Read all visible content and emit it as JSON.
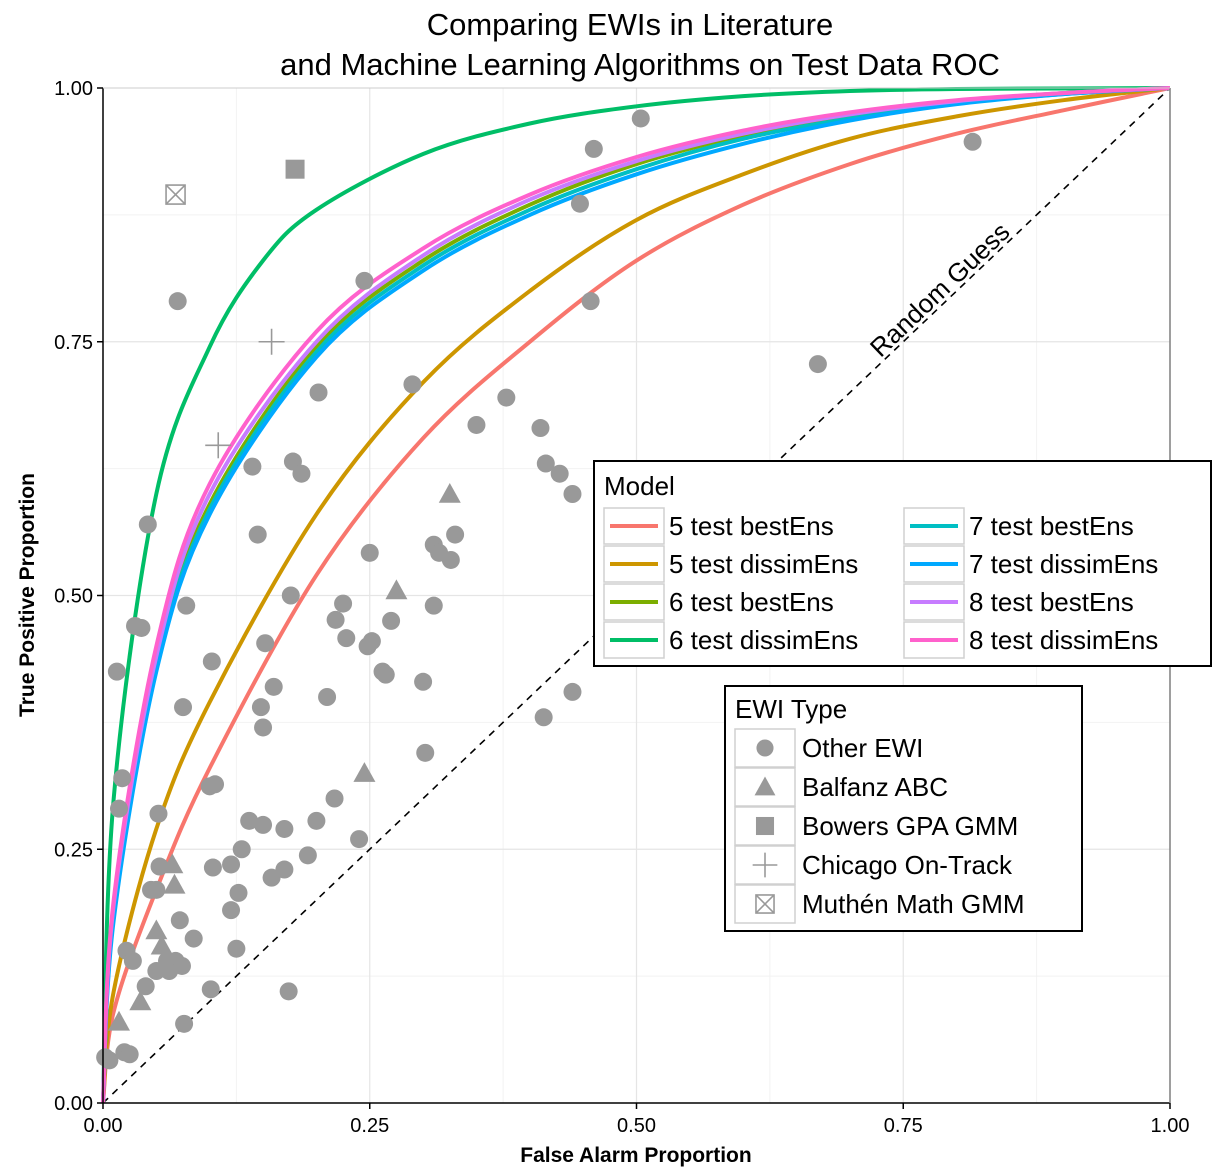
{
  "chart_data": {
    "type": "scatter",
    "title": [
      "Comparing EWIs in Literature",
      "and Machine Learning Algorithms on Test Data ROC"
    ],
    "xlabel": "False Alarm Proportion",
    "ylabel": "True Positive Proportion",
    "xlim": [
      0,
      1
    ],
    "ylim": [
      0,
      1
    ],
    "xticks": [
      "0.00",
      "0.25",
      "0.50",
      "0.75",
      "1.00"
    ],
    "yticks": [
      "0.00",
      "0.25",
      "0.50",
      "0.75",
      "1.00"
    ],
    "grid": true,
    "annotations": [
      {
        "text": "Random Guess",
        "x": 0.79,
        "y": 0.795
      }
    ],
    "reference_line": {
      "name": "Random Guess",
      "points": [
        [
          0,
          0
        ],
        [
          1,
          1
        ]
      ],
      "style": "dashed"
    },
    "model_legend": {
      "title": "Model",
      "placement": "right",
      "entries": [
        {
          "name": "5 test bestEns",
          "color": "#F8766D"
        },
        {
          "name": "5 test dissimEns",
          "color": "#CD9600"
        },
        {
          "name": "6 test bestEns",
          "color": "#7CAE00"
        },
        {
          "name": "6 test dissimEns",
          "color": "#00BE67"
        },
        {
          "name": "7 test bestEns",
          "color": "#00BFC4"
        },
        {
          "name": "7 test dissimEns",
          "color": "#00A9FF"
        },
        {
          "name": "8 test bestEns",
          "color": "#C77CFF"
        },
        {
          "name": "8 test dissimEns",
          "color": "#FF61CC"
        }
      ]
    },
    "curves": [
      {
        "name": "5 test bestEns",
        "color": "#F8766D",
        "points": [
          [
            0,
            0
          ],
          [
            0.01,
            0.09
          ],
          [
            0.05,
            0.21
          ],
          [
            0.1,
            0.33
          ],
          [
            0.2,
            0.52
          ],
          [
            0.3,
            0.655
          ],
          [
            0.4,
            0.75
          ],
          [
            0.5,
            0.83
          ],
          [
            0.6,
            0.885
          ],
          [
            0.7,
            0.925
          ],
          [
            0.8,
            0.955
          ],
          [
            0.9,
            0.978
          ],
          [
            1,
            1
          ]
        ]
      },
      {
        "name": "5 test dissimEns",
        "color": "#CD9600",
        "points": [
          [
            0,
            0
          ],
          [
            0.01,
            0.11
          ],
          [
            0.05,
            0.27
          ],
          [
            0.1,
            0.395
          ],
          [
            0.2,
            0.58
          ],
          [
            0.3,
            0.71
          ],
          [
            0.4,
            0.8
          ],
          [
            0.5,
            0.87
          ],
          [
            0.6,
            0.915
          ],
          [
            0.7,
            0.95
          ],
          [
            0.8,
            0.972
          ],
          [
            0.9,
            0.988
          ],
          [
            1,
            1
          ]
        ]
      },
      {
        "name": "6 test bestEns",
        "color": "#7CAE00",
        "points": [
          [
            0,
            0
          ],
          [
            0.01,
            0.19
          ],
          [
            0.05,
            0.435
          ],
          [
            0.1,
            0.59
          ],
          [
            0.2,
            0.745
          ],
          [
            0.3,
            0.83
          ],
          [
            0.4,
            0.885
          ],
          [
            0.5,
            0.925
          ],
          [
            0.6,
            0.953
          ],
          [
            0.7,
            0.972
          ],
          [
            0.8,
            0.986
          ],
          [
            0.9,
            0.995
          ],
          [
            1,
            1
          ]
        ]
      },
      {
        "name": "6 test dissimEns",
        "color": "#00BE67",
        "points": [
          [
            0,
            0
          ],
          [
            0.01,
            0.3
          ],
          [
            0.05,
            0.6
          ],
          [
            0.1,
            0.745
          ],
          [
            0.15,
            0.83
          ],
          [
            0.2,
            0.88
          ],
          [
            0.3,
            0.935
          ],
          [
            0.4,
            0.965
          ],
          [
            0.5,
            0.982
          ],
          [
            0.6,
            0.992
          ],
          [
            0.7,
            0.997
          ],
          [
            0.8,
            0.999
          ],
          [
            1,
            1
          ]
        ]
      },
      {
        "name": "7 test bestEns",
        "color": "#00BFC4",
        "points": [
          [
            0,
            0
          ],
          [
            0.01,
            0.185
          ],
          [
            0.05,
            0.43
          ],
          [
            0.1,
            0.585
          ],
          [
            0.2,
            0.74
          ],
          [
            0.3,
            0.825
          ],
          [
            0.4,
            0.88
          ],
          [
            0.5,
            0.92
          ],
          [
            0.6,
            0.95
          ],
          [
            0.7,
            0.97
          ],
          [
            0.8,
            0.985
          ],
          [
            0.9,
            0.994
          ],
          [
            1,
            1
          ]
        ]
      },
      {
        "name": "7 test dissimEns",
        "color": "#00A9FF",
        "points": [
          [
            0,
            0
          ],
          [
            0.01,
            0.18
          ],
          [
            0.05,
            0.425
          ],
          [
            0.1,
            0.58
          ],
          [
            0.2,
            0.735
          ],
          [
            0.3,
            0.82
          ],
          [
            0.4,
            0.875
          ],
          [
            0.5,
            0.915
          ],
          [
            0.6,
            0.945
          ],
          [
            0.7,
            0.968
          ],
          [
            0.8,
            0.984
          ],
          [
            0.9,
            0.994
          ],
          [
            1,
            1
          ]
        ]
      },
      {
        "name": "8 test bestEns",
        "color": "#C77CFF",
        "points": [
          [
            0,
            0
          ],
          [
            0.01,
            0.195
          ],
          [
            0.05,
            0.44
          ],
          [
            0.1,
            0.6
          ],
          [
            0.2,
            0.75
          ],
          [
            0.3,
            0.835
          ],
          [
            0.4,
            0.89
          ],
          [
            0.5,
            0.928
          ],
          [
            0.6,
            0.955
          ],
          [
            0.7,
            0.974
          ],
          [
            0.8,
            0.987
          ],
          [
            0.9,
            0.995
          ],
          [
            1,
            1
          ]
        ]
      },
      {
        "name": "8 test dissimEns",
        "color": "#FF61CC",
        "points": [
          [
            0,
            0
          ],
          [
            0.01,
            0.2
          ],
          [
            0.05,
            0.45
          ],
          [
            0.1,
            0.61
          ],
          [
            0.2,
            0.76
          ],
          [
            0.3,
            0.842
          ],
          [
            0.4,
            0.895
          ],
          [
            0.5,
            0.932
          ],
          [
            0.6,
            0.958
          ],
          [
            0.7,
            0.976
          ],
          [
            0.8,
            0.988
          ],
          [
            0.9,
            0.995
          ],
          [
            1,
            1
          ]
        ]
      }
    ],
    "ewi_legend": {
      "title": "EWI Type",
      "placement": "right",
      "entries": [
        {
          "name": "Other EWI",
          "shape": "circle"
        },
        {
          "name": "Balfanz ABC",
          "shape": "triangle"
        },
        {
          "name": "Bowers GPA GMM",
          "shape": "square"
        },
        {
          "name": "Chicago On-Track",
          "shape": "plus"
        },
        {
          "name": "Muthén Math GMM",
          "shape": "boxx"
        }
      ]
    },
    "points_color": "#999999",
    "series": [
      {
        "name": "Other EWI",
        "shape": "circle",
        "points": [
          [
            0.002,
            0.045
          ],
          [
            0.006,
            0.042
          ],
          [
            0.013,
            0.425
          ],
          [
            0.015,
            0.29
          ],
          [
            0.018,
            0.32
          ],
          [
            0.02,
            0.05
          ],
          [
            0.022,
            0.15
          ],
          [
            0.025,
            0.048
          ],
          [
            0.028,
            0.14
          ],
          [
            0.03,
            0.47
          ],
          [
            0.036,
            0.468
          ],
          [
            0.04,
            0.115
          ],
          [
            0.042,
            0.57
          ],
          [
            0.045,
            0.21
          ],
          [
            0.05,
            0.21
          ],
          [
            0.05,
            0.13
          ],
          [
            0.052,
            0.285
          ],
          [
            0.053,
            0.233
          ],
          [
            0.06,
            0.14
          ],
          [
            0.062,
            0.13
          ],
          [
            0.068,
            0.14
          ],
          [
            0.07,
            0.79
          ],
          [
            0.072,
            0.18
          ],
          [
            0.074,
            0.135
          ],
          [
            0.075,
            0.39
          ],
          [
            0.076,
            0.078
          ],
          [
            0.078,
            0.49
          ],
          [
            0.085,
            0.162
          ],
          [
            0.1,
            0.312
          ],
          [
            0.101,
            0.112
          ],
          [
            0.102,
            0.435
          ],
          [
            0.103,
            0.232
          ],
          [
            0.105,
            0.314
          ],
          [
            0.12,
            0.19
          ],
          [
            0.12,
            0.235
          ],
          [
            0.125,
            0.152
          ],
          [
            0.127,
            0.207
          ],
          [
            0.13,
            0.25
          ],
          [
            0.137,
            0.278
          ],
          [
            0.14,
            0.627
          ],
          [
            0.145,
            0.56
          ],
          [
            0.148,
            0.39
          ],
          [
            0.15,
            0.274
          ],
          [
            0.15,
            0.37
          ],
          [
            0.152,
            0.453
          ],
          [
            0.158,
            0.222
          ],
          [
            0.16,
            0.41
          ],
          [
            0.17,
            0.27
          ],
          [
            0.17,
            0.23
          ],
          [
            0.174,
            0.11
          ],
          [
            0.176,
            0.5
          ],
          [
            0.178,
            0.632
          ],
          [
            0.186,
            0.62
          ],
          [
            0.192,
            0.244
          ],
          [
            0.2,
            0.278
          ],
          [
            0.202,
            0.7
          ],
          [
            0.21,
            0.4
          ],
          [
            0.217,
            0.3
          ],
          [
            0.218,
            0.476
          ],
          [
            0.225,
            0.492
          ],
          [
            0.228,
            0.458
          ],
          [
            0.24,
            0.26
          ],
          [
            0.245,
            0.81
          ],
          [
            0.248,
            0.45
          ],
          [
            0.25,
            0.542
          ],
          [
            0.252,
            0.455
          ],
          [
            0.262,
            0.425
          ],
          [
            0.265,
            0.422
          ],
          [
            0.27,
            0.475
          ],
          [
            0.29,
            0.708
          ],
          [
            0.3,
            0.415
          ],
          [
            0.302,
            0.345
          ],
          [
            0.31,
            0.55
          ],
          [
            0.31,
            0.49
          ],
          [
            0.315,
            0.542
          ],
          [
            0.326,
            0.535
          ],
          [
            0.33,
            0.56
          ],
          [
            0.35,
            0.668
          ],
          [
            0.378,
            0.695
          ],
          [
            0.41,
            0.665
          ],
          [
            0.413,
            0.38
          ],
          [
            0.415,
            0.63
          ],
          [
            0.428,
            0.62
          ],
          [
            0.44,
            0.6
          ],
          [
            0.44,
            0.405
          ],
          [
            0.447,
            0.886
          ],
          [
            0.457,
            0.79
          ],
          [
            0.46,
            0.94
          ],
          [
            0.504,
            0.97
          ],
          [
            0.67,
            0.728
          ],
          [
            0.815,
            0.947
          ]
        ]
      },
      {
        "name": "Balfanz ABC",
        "shape": "triangle",
        "points": [
          [
            0.015,
            0.08
          ],
          [
            0.035,
            0.1
          ],
          [
            0.05,
            0.17
          ],
          [
            0.055,
            0.155
          ],
          [
            0.065,
            0.235
          ],
          [
            0.067,
            0.215
          ],
          [
            0.245,
            0.325
          ],
          [
            0.275,
            0.505
          ],
          [
            0.325,
            0.6
          ]
        ]
      },
      {
        "name": "Bowers GPA GMM",
        "shape": "square",
        "points": [
          [
            0.18,
            0.92
          ]
        ]
      },
      {
        "name": "Chicago On-Track",
        "shape": "plus",
        "points": [
          [
            0.158,
            0.75
          ],
          [
            0.108,
            0.648
          ]
        ]
      },
      {
        "name": "Muthén Math GMM",
        "shape": "boxx",
        "points": [
          [
            0.068,
            0.895
          ]
        ]
      }
    ]
  }
}
